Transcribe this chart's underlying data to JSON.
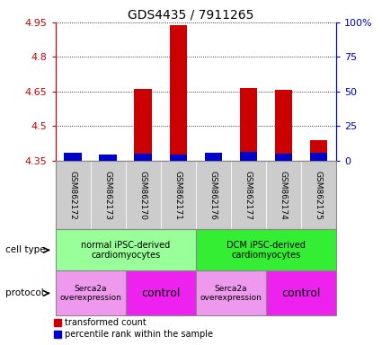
{
  "title": "GDS4435 / 7911265",
  "samples": [
    "GSM862172",
    "GSM862173",
    "GSM862170",
    "GSM862171",
    "GSM862176",
    "GSM862177",
    "GSM862174",
    "GSM862175"
  ],
  "red_values": [
    4.375,
    4.365,
    4.66,
    4.94,
    4.375,
    4.665,
    4.655,
    4.44
  ],
  "blue_values": [
    4.385,
    4.375,
    4.378,
    4.377,
    4.385,
    4.388,
    4.378,
    4.385
  ],
  "ylim_left": [
    4.35,
    4.95
  ],
  "ylim_right": [
    0,
    100
  ],
  "yticks_left": [
    4.35,
    4.5,
    4.65,
    4.8,
    4.95
  ],
  "yticks_right": [
    0,
    25,
    50,
    75,
    100
  ],
  "ytick_labels_left": [
    "4.35",
    "4.5",
    "4.65",
    "4.8",
    "4.95"
  ],
  "ytick_labels_right": [
    "0",
    "25",
    "50",
    "75",
    "100%"
  ],
  "red_color": "#cc0000",
  "blue_color": "#0000cc",
  "cell_type_groups": [
    {
      "label": "normal iPSC-derived\ncardiomyocytes",
      "start": 0,
      "end": 3,
      "color": "#99ff99"
    },
    {
      "label": "DCM iPSC-derived\ncardiomyocytes",
      "start": 4,
      "end": 7,
      "color": "#33ee33"
    }
  ],
  "protocol_groups": [
    {
      "label": "Serca2a\noverexpression",
      "start": 0,
      "end": 1,
      "color": "#ee99ee",
      "fontsize": 6.5
    },
    {
      "label": "control",
      "start": 2,
      "end": 3,
      "color": "#ee22ee",
      "fontsize": 9
    },
    {
      "label": "Serca2a\noverexpression",
      "start": 4,
      "end": 5,
      "color": "#ee99ee",
      "fontsize": 6.5
    },
    {
      "label": "control",
      "start": 6,
      "end": 7,
      "color": "#ee22ee",
      "fontsize": 9
    }
  ],
  "left_axis_color": "#cc0000",
  "right_axis_color": "#0000cc",
  "grid_color": "#000000",
  "sample_bg_color": "#cccccc",
  "border_color": "#888888"
}
